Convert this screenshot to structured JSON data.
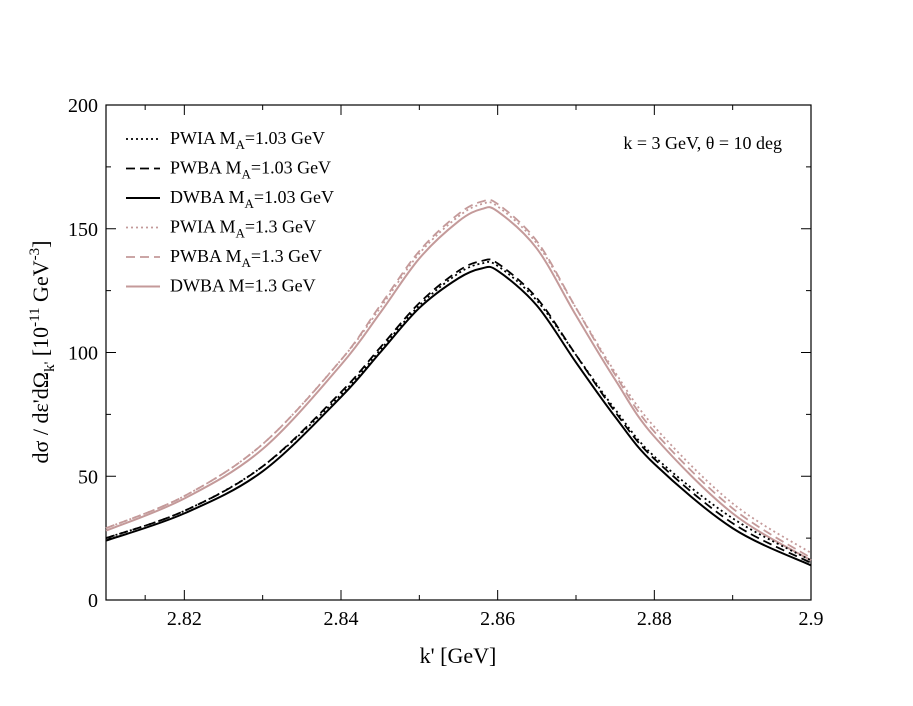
{
  "chart_data": {
    "type": "line",
    "title": "",
    "xlabel": "k' [GeV]",
    "ylabel": {
      "prefix": "dσ / dε'dΩ",
      "sub": "k'",
      "unit_open": " [10",
      "sup1": "-11",
      "unit_mid": " GeV",
      "sup2": "-3",
      "unit_close": "]"
    },
    "xlim": [
      2.81,
      2.9
    ],
    "ylim": [
      0,
      200
    ],
    "xticks": [
      2.82,
      2.84,
      2.86,
      2.88,
      2.9
    ],
    "xtick_labels": [
      "2.82",
      "2.84",
      "2.86",
      "2.88",
      "2.9"
    ],
    "yticks": [
      0,
      50,
      100,
      150,
      200
    ],
    "ytick_labels": [
      "0",
      "50",
      "100",
      "150",
      "200"
    ],
    "annotation": "k = 3 GeV, θ = 10 deg",
    "legend_position": "top-left",
    "colors": {
      "black": "#000000",
      "pink": "#c49a9a"
    },
    "x": [
      2.81,
      2.82,
      2.83,
      2.84,
      2.845,
      2.85,
      2.855,
      2.858,
      2.86,
      2.865,
      2.87,
      2.875,
      2.88,
      2.89,
      2.9
    ],
    "series": [
      {
        "name": "PWIA",
        "legend": {
          "main": "PWIA M",
          "sub": "A",
          "rest": "=1.03 GeV"
        },
        "color": "#000000",
        "dash": "dot",
        "values": [
          25,
          36,
          54,
          83,
          101,
          119,
          132,
          136,
          135,
          121,
          99,
          77,
          58,
          33,
          16
        ]
      },
      {
        "name": "PWBA",
        "legend": {
          "main": "PWBA M",
          "sub": "A",
          "rest": "=1.03 GeV"
        },
        "color": "#000000",
        "dash": "dash",
        "values": [
          25,
          36,
          54,
          84,
          102,
          120,
          133,
          137,
          136,
          122,
          99,
          76,
          57,
          31,
          15
        ]
      },
      {
        "name": "DWBA",
        "legend": {
          "main": "DWBA M",
          "sub": "A",
          "rest": "=1.03 GeV"
        },
        "color": "#000000",
        "dash": "solid",
        "values": [
          24,
          35,
          52,
          82,
          100,
          118,
          130,
          134,
          133,
          119,
          96,
          74,
          55,
          29,
          14
        ]
      },
      {
        "name": "PWIA",
        "legend": {
          "main": "PWIA M",
          "sub": "A",
          "rest": "=1.3 GeV"
        },
        "color": "#c49a9a",
        "dash": "dot",
        "values": [
          29,
          42,
          63,
          97,
          118,
          140,
          155,
          160,
          159,
          144,
          118,
          92,
          70,
          39,
          19
        ]
      },
      {
        "name": "PWBA",
        "legend": {
          "main": "PWBA M",
          "sub": "A",
          "rest": "=1.3 GeV"
        },
        "color": "#c49a9a",
        "dash": "dash",
        "values": [
          29,
          42,
          63,
          97,
          119,
          141,
          156,
          161,
          160,
          145,
          118,
          91,
          68,
          37,
          17
        ]
      },
      {
        "name": "DWBA",
        "legend": {
          "main": "DWBA M",
          "sub": "",
          "rest": "=1.3 GeV"
        },
        "color": "#c49a9a",
        "dash": "solid",
        "values": [
          28,
          41,
          61,
          95,
          116,
          138,
          153,
          158,
          157,
          142,
          115,
          89,
          66,
          35,
          16
        ]
      }
    ]
  }
}
